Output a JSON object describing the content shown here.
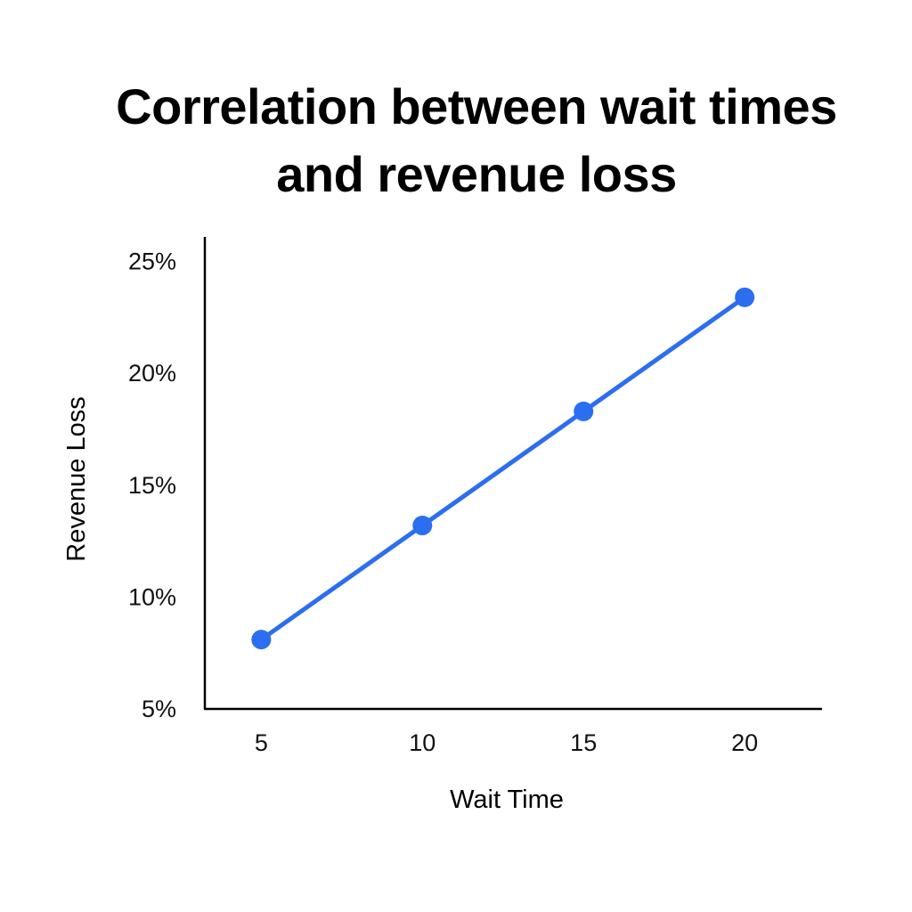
{
  "chart_data": {
    "type": "line",
    "title_lines": [
      "Correlation between wait times",
      "and revenue loss"
    ],
    "xlabel": "Wait Time",
    "ylabel": "Revenue Loss",
    "x": [
      5,
      10,
      15,
      20
    ],
    "x_tick_labels": [
      "5",
      "10",
      "15",
      "20"
    ],
    "y_ticks": [
      5,
      10,
      15,
      20,
      25
    ],
    "y_tick_labels": [
      "5%",
      "10%",
      "15%",
      "20%",
      "25%"
    ],
    "xlim": [
      3.25,
      22.4
    ],
    "ylim": [
      5,
      26.1
    ],
    "grid": false,
    "legend": "none",
    "series": [
      {
        "name": "Revenue Loss",
        "values": [
          8.1,
          13.2,
          18.3,
          23.4
        ],
        "color": "#2b6ef0"
      }
    ]
  }
}
